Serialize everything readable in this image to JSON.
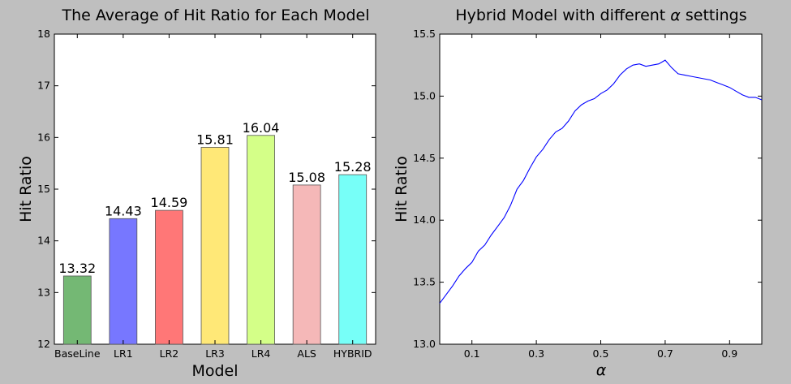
{
  "chart_data": [
    {
      "type": "bar",
      "title": "The Average of Hit Ratio for Each Model",
      "xlabel": "Model",
      "ylabel": "Hit Ratio",
      "ylim": [
        12,
        18
      ],
      "yticks": [
        "12",
        "13",
        "14",
        "15",
        "16",
        "17",
        "18"
      ],
      "categories": [
        "BaseLine",
        "LR1",
        "LR2",
        "LR3",
        "LR4",
        "ALS",
        "HYBRID"
      ],
      "values": [
        13.32,
        14.43,
        14.59,
        15.81,
        16.04,
        15.08,
        15.28
      ],
      "value_labels": [
        "13.32",
        "14.43",
        "14.59",
        "15.81",
        "16.04",
        "15.08",
        "15.28"
      ],
      "colors": [
        "#74b874",
        "#7777ff",
        "#ff7777",
        "#ffe877",
        "#d4ff88",
        "#f5b8b8",
        "#77fff8"
      ],
      "grid": false
    },
    {
      "type": "line",
      "title": "Hybrid Model with different α settings",
      "xlabel": "α",
      "ylabel": "Hit Ratio",
      "xlim": [
        0.0,
        1.0
      ],
      "ylim": [
        13.0,
        15.5
      ],
      "xticks": [
        "0.1",
        "0.3",
        "0.5",
        "0.7",
        "0.9"
      ],
      "yticks": [
        "13.0",
        "13.5",
        "14.0",
        "14.5",
        "15.0",
        "15.5"
      ],
      "color": "#0000ff",
      "grid": false,
      "x": [
        0.0,
        0.02,
        0.04,
        0.06,
        0.08,
        0.1,
        0.12,
        0.14,
        0.16,
        0.18,
        0.2,
        0.22,
        0.24,
        0.26,
        0.28,
        0.3,
        0.32,
        0.34,
        0.36,
        0.38,
        0.4,
        0.42,
        0.44,
        0.46,
        0.48,
        0.5,
        0.52,
        0.54,
        0.56,
        0.58,
        0.6,
        0.62,
        0.64,
        0.66,
        0.68,
        0.7,
        0.72,
        0.74,
        0.76,
        0.78,
        0.8,
        0.82,
        0.84,
        0.86,
        0.88,
        0.9,
        0.92,
        0.94,
        0.96,
        0.98,
        1.0
      ],
      "y": [
        13.33,
        13.4,
        13.47,
        13.55,
        13.61,
        13.66,
        13.75,
        13.8,
        13.88,
        13.95,
        14.02,
        14.12,
        14.25,
        14.32,
        14.42,
        14.51,
        14.57,
        14.65,
        14.71,
        14.74,
        14.8,
        14.88,
        14.93,
        14.96,
        14.98,
        15.02,
        15.05,
        15.1,
        15.17,
        15.22,
        15.25,
        15.26,
        15.24,
        15.25,
        15.26,
        15.29,
        15.23,
        15.18,
        15.17,
        15.16,
        15.15,
        15.14,
        15.13,
        15.11,
        15.09,
        15.07,
        15.04,
        15.01,
        14.99,
        14.99,
        14.97
      ]
    }
  ]
}
